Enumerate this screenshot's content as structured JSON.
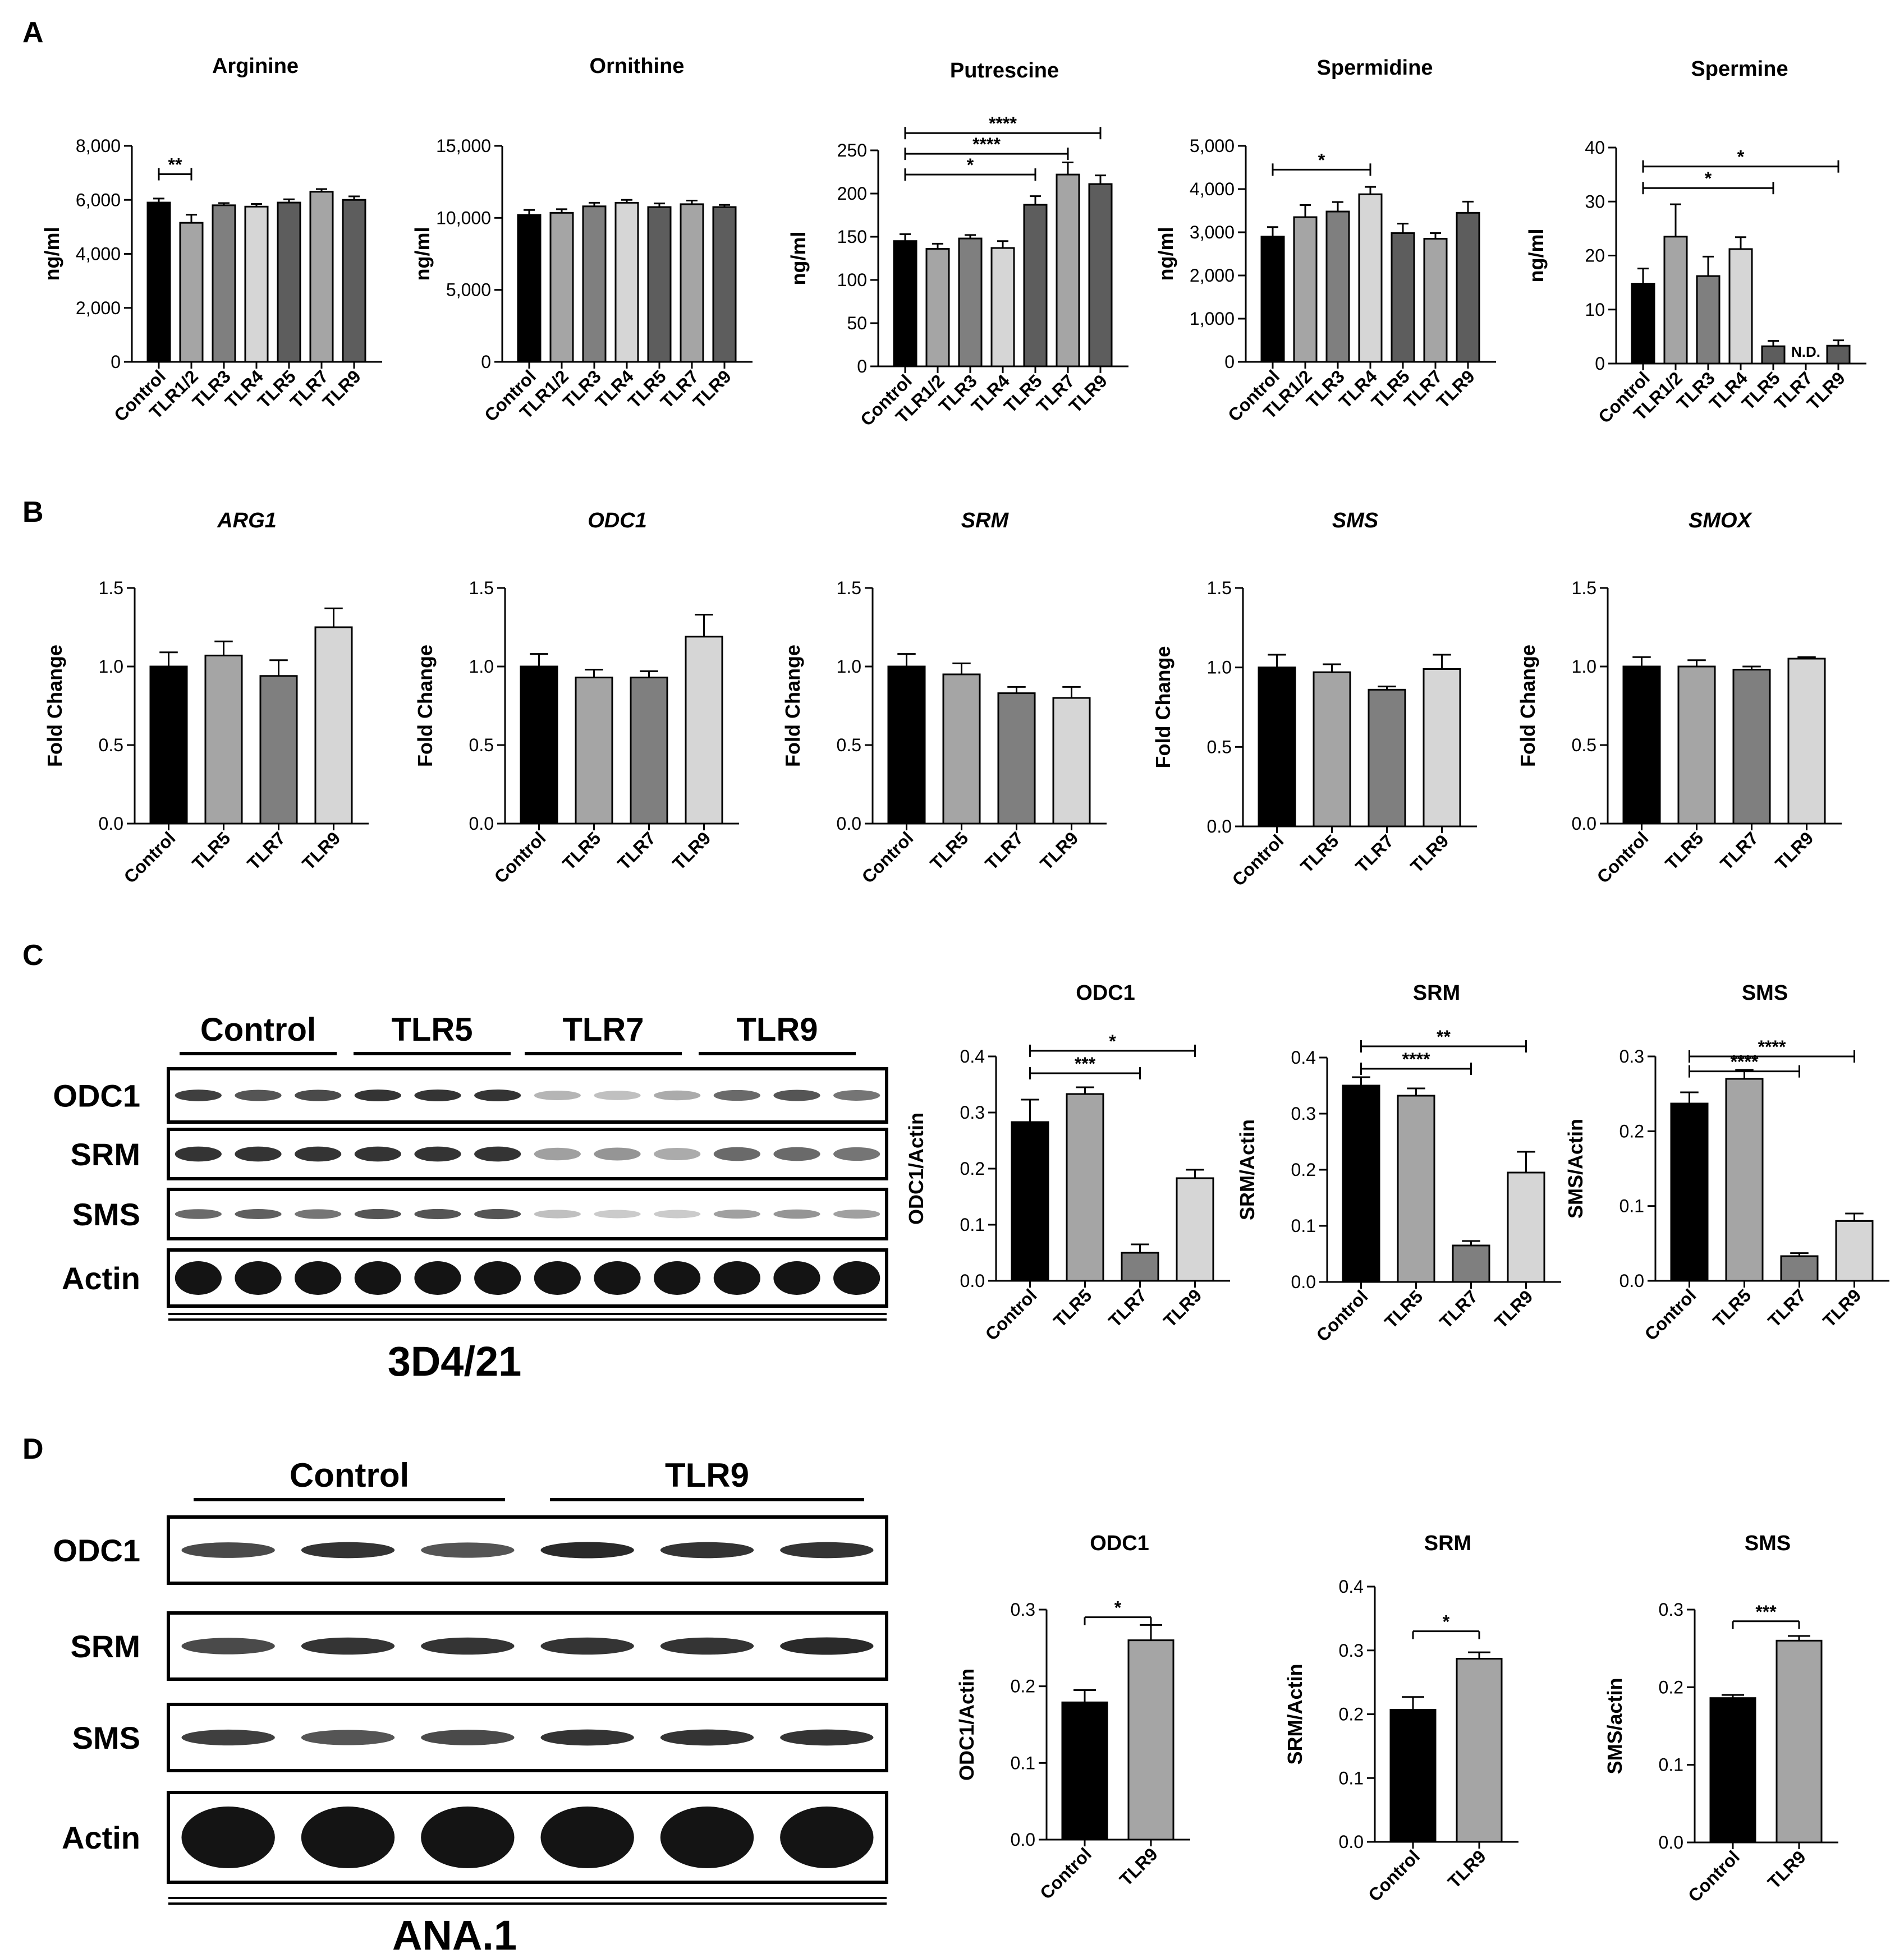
{
  "panels": {
    "A": "A",
    "B": "B",
    "C": "C",
    "D": "D"
  },
  "colors": {
    "black": "#000000",
    "dark_gray": "#5d5d5d",
    "mid_gray": "#7f7f7f",
    "light_gray": "#a5a5a5",
    "lightest_gray": "#d6d6d6"
  },
  "blots": {
    "C": {
      "groups": [
        "Control",
        "TLR5",
        "TLR7",
        "TLR9"
      ],
      "rows": [
        "ODC1",
        "SRM",
        "SMS",
        "Actin"
      ],
      "cell_line": "3D4/21",
      "band_intensity": {
        "ODC1": [
          0.8,
          0.7,
          0.75,
          0.85,
          0.85,
          0.85,
          0.25,
          0.2,
          0.3,
          0.6,
          0.7,
          0.55
        ],
        "SRM": [
          0.85,
          0.85,
          0.85,
          0.85,
          0.85,
          0.85,
          0.35,
          0.4,
          0.3,
          0.6,
          0.6,
          0.55
        ],
        "SMS": [
          0.6,
          0.65,
          0.55,
          0.7,
          0.7,
          0.7,
          0.2,
          0.15,
          0.15,
          0.35,
          0.4,
          0.35
        ],
        "Actin": [
          1,
          1,
          1,
          1,
          1,
          1,
          1,
          1,
          1,
          1,
          1,
          1
        ]
      }
    },
    "D": {
      "groups": [
        "Control",
        "TLR9"
      ],
      "rows": [
        "ODC1",
        "SRM",
        "SMS",
        "Actin"
      ],
      "cell_line": "ANA.1",
      "band_intensity": {
        "ODC1": [
          0.75,
          0.85,
          0.7,
          0.9,
          0.85,
          0.85
        ],
        "SRM": [
          0.75,
          0.85,
          0.85,
          0.85,
          0.85,
          0.9
        ],
        "SMS": [
          0.8,
          0.7,
          0.75,
          0.85,
          0.85,
          0.85
        ],
        "Actin": [
          1,
          1,
          1,
          1,
          1,
          1
        ]
      }
    }
  },
  "chart_data": [
    {
      "panel": "A",
      "type": "bar",
      "title": "Arginine",
      "title_italic": false,
      "categories": [
        "Control",
        "TLR1/2",
        "TLR3",
        "TLR4",
        "TLR5",
        "TLR7",
        "TLR9"
      ],
      "values": [
        5900,
        5150,
        5800,
        5750,
        5900,
        6300,
        6000
      ],
      "errors": [
        150,
        300,
        80,
        100,
        120,
        100,
        130
      ],
      "colors": [
        "#000000",
        "#a5a5a5",
        "#7f7f7f",
        "#d6d6d6",
        "#5d5d5d",
        "#a5a5a5",
        "#5d5d5d"
      ],
      "ylim": [
        0,
        8000
      ],
      "yticks": [
        "0",
        "2,000",
        "4,000",
        "6,000",
        "8,000"
      ],
      "ylabel": "ng/ml",
      "signif": [
        {
          "from": 0,
          "to": 1,
          "label": "**",
          "y": 6950,
          "ticks": "both"
        }
      ]
    },
    {
      "panel": "A",
      "type": "bar",
      "title": "Ornithine",
      "title_italic": false,
      "categories": [
        "Control",
        "TLR1/2",
        "TLR3",
        "TLR4",
        "TLR5",
        "TLR7",
        "TLR9"
      ],
      "values": [
        10200,
        10350,
        10800,
        11050,
        10750,
        10950,
        10750
      ],
      "errors": [
        350,
        250,
        250,
        200,
        250,
        250,
        150
      ],
      "colors": [
        "#000000",
        "#a5a5a5",
        "#7f7f7f",
        "#d6d6d6",
        "#5d5d5d",
        "#a5a5a5",
        "#5d5d5d"
      ],
      "ylim": [
        0,
        15000
      ],
      "yticks": [
        "0",
        "5,000",
        "10,000",
        "15,000"
      ],
      "ylabel": "ng/ml",
      "signif": []
    },
    {
      "panel": "A",
      "type": "bar",
      "title": "Putrescine",
      "title_italic": false,
      "categories": [
        "Control",
        "TLR1/2",
        "TLR3",
        "TLR4",
        "TLR5",
        "TLR7",
        "TLR9"
      ],
      "values": [
        145,
        136,
        148,
        137,
        187,
        222,
        211
      ],
      "errors": [
        8,
        6,
        4,
        8,
        10,
        14,
        10
      ],
      "colors": [
        "#000000",
        "#a5a5a5",
        "#7f7f7f",
        "#d6d6d6",
        "#5d5d5d",
        "#a5a5a5",
        "#5d5d5d"
      ],
      "ylim": [
        0,
        250
      ],
      "yticks": [
        "0",
        "50",
        "100",
        "150",
        "200",
        "250"
      ],
      "ylabel": "ng/ml",
      "signif": [
        {
          "from": 0,
          "to": 4,
          "label": "*",
          "y": 222,
          "ticks": "both"
        },
        {
          "from": 0,
          "to": 5,
          "label": "****",
          "y": 246,
          "ticks": "both"
        },
        {
          "from": 0,
          "to": 6,
          "label": "****",
          "y": 270,
          "ticks": "both"
        }
      ]
    },
    {
      "panel": "A",
      "type": "bar",
      "title": "Spermidine",
      "title_italic": false,
      "categories": [
        "Control",
        "TLR1/2",
        "TLR3",
        "TLR4",
        "TLR5",
        "TLR7",
        "TLR9"
      ],
      "values": [
        2900,
        3350,
        3480,
        3880,
        2980,
        2850,
        3450
      ],
      "errors": [
        220,
        280,
        220,
        170,
        220,
        130,
        260
      ],
      "colors": [
        "#000000",
        "#a5a5a5",
        "#7f7f7f",
        "#d6d6d6",
        "#5d5d5d",
        "#a5a5a5",
        "#5d5d5d"
      ],
      "ylim": [
        0,
        5000
      ],
      "yticks": [
        "0",
        "1,000",
        "2,000",
        "3,000",
        "4,000",
        "5,000"
      ],
      "ylabel": "ng/ml",
      "signif": [
        {
          "from": 0,
          "to": 3,
          "label": "*",
          "y": 4450,
          "ticks": "both"
        }
      ]
    },
    {
      "panel": "A",
      "type": "bar",
      "title": "Spermine",
      "title_italic": false,
      "categories": [
        "Control",
        "TLR1/2",
        "TLR3",
        "TLR4",
        "TLR5",
        "TLR7",
        "TLR9"
      ],
      "values": [
        14.8,
        23.5,
        16.2,
        21.2,
        3.2,
        0,
        3.3
      ],
      "errors": [
        2.8,
        6.0,
        3.6,
        2.2,
        1.0,
        0,
        1.0
      ],
      "colors": [
        "#000000",
        "#a5a5a5",
        "#7f7f7f",
        "#d6d6d6",
        "#5d5d5d",
        "#a5a5a5",
        "#5d5d5d"
      ],
      "ylim": [
        0,
        40
      ],
      "yticks": [
        "0",
        "10",
        "20",
        "30",
        "40"
      ],
      "ylabel": "ng/ml",
      "nd": {
        "index": 5,
        "label": "N.D."
      },
      "signif": [
        {
          "from": 0,
          "to": 4,
          "label": "*",
          "y": 32.5,
          "ticks": "both"
        },
        {
          "from": 0,
          "to": 6,
          "label": "*",
          "y": 36.5,
          "ticks": "both"
        }
      ]
    },
    {
      "panel": "B",
      "type": "bar",
      "title": "ARG1",
      "title_italic": true,
      "categories": [
        "Control",
        "TLR5",
        "TLR7",
        "TLR9"
      ],
      "values": [
        1.0,
        1.07,
        0.94,
        1.25
      ],
      "errors": [
        0.09,
        0.09,
        0.1,
        0.12
      ],
      "colors": [
        "#000000",
        "#a5a5a5",
        "#7f7f7f",
        "#d6d6d6"
      ],
      "ylim": [
        0,
        1.5
      ],
      "yticks": [
        "0.0",
        "0.5",
        "1.0",
        "1.5"
      ],
      "ylabel": "Fold Change",
      "signif": []
    },
    {
      "panel": "B",
      "type": "bar",
      "title": "ODC1",
      "title_italic": true,
      "categories": [
        "Control",
        "TLR5",
        "TLR7",
        "TLR9"
      ],
      "values": [
        1.0,
        0.93,
        0.93,
        1.19
      ],
      "errors": [
        0.08,
        0.05,
        0.04,
        0.14
      ],
      "colors": [
        "#000000",
        "#a5a5a5",
        "#7f7f7f",
        "#d6d6d6"
      ],
      "ylim": [
        0,
        1.5
      ],
      "yticks": [
        "0.0",
        "0.5",
        "1.0",
        "1.5"
      ],
      "ylabel": "Fold Change",
      "signif": []
    },
    {
      "panel": "B",
      "type": "bar",
      "title": "SRM",
      "title_italic": true,
      "categories": [
        "Control",
        "TLR5",
        "TLR7",
        "TLR9"
      ],
      "values": [
        1.0,
        0.95,
        0.83,
        0.8
      ],
      "errors": [
        0.08,
        0.07,
        0.04,
        0.07
      ],
      "colors": [
        "#000000",
        "#a5a5a5",
        "#7f7f7f",
        "#d6d6d6"
      ],
      "ylim": [
        0,
        1.5
      ],
      "yticks": [
        "0.0",
        "0.5",
        "1.0",
        "1.5"
      ],
      "ylabel": "Fold Change",
      "signif": []
    },
    {
      "panel": "B",
      "type": "bar",
      "title": "SMS",
      "title_italic": true,
      "categories": [
        "Control",
        "TLR5",
        "TLR7",
        "TLR9"
      ],
      "values": [
        1.0,
        0.97,
        0.86,
        0.99
      ],
      "errors": [
        0.08,
        0.05,
        0.02,
        0.09
      ],
      "colors": [
        "#000000",
        "#a5a5a5",
        "#7f7f7f",
        "#d6d6d6"
      ],
      "ylim": [
        0,
        1.5
      ],
      "yticks": [
        "0.0",
        "0.5",
        "1.0",
        "1.5"
      ],
      "ylabel": "Fold Change",
      "signif": []
    },
    {
      "panel": "B",
      "type": "bar",
      "title": "SMOX",
      "title_italic": true,
      "categories": [
        "Control",
        "TLR5",
        "TLR7",
        "TLR9"
      ],
      "values": [
        1.0,
        1.0,
        0.98,
        1.05
      ],
      "errors": [
        0.06,
        0.04,
        0.02,
        0.01
      ],
      "colors": [
        "#000000",
        "#a5a5a5",
        "#7f7f7f",
        "#d6d6d6"
      ],
      "ylim": [
        0,
        1.5
      ],
      "yticks": [
        "0.0",
        "0.5",
        "1.0",
        "1.5"
      ],
      "ylabel": "Fold Change",
      "signif": []
    },
    {
      "panel": "C",
      "type": "bar",
      "title": "ODC1",
      "title_italic": false,
      "categories": [
        "Control",
        "TLR5",
        "TLR7",
        "TLR9"
      ],
      "values": [
        0.283,
        0.333,
        0.05,
        0.183
      ],
      "errors": [
        0.04,
        0.012,
        0.015,
        0.015
      ],
      "colors": [
        "#000000",
        "#a5a5a5",
        "#7f7f7f",
        "#d6d6d6"
      ],
      "ylim": [
        0,
        0.4
      ],
      "yticks": [
        "0.0",
        "0.1",
        "0.2",
        "0.3",
        "0.4"
      ],
      "ylabel": "ODC1/Actin",
      "signif": [
        {
          "from": 0,
          "to": 2,
          "label": "***",
          "y": 0.37,
          "ticks": "both"
        },
        {
          "from": 0,
          "to": 3,
          "label": "*",
          "y": 0.41,
          "ticks": "both"
        }
      ]
    },
    {
      "panel": "C",
      "type": "bar",
      "title": "SRM",
      "title_italic": false,
      "categories": [
        "Control",
        "TLR5",
        "TLR7",
        "TLR9"
      ],
      "values": [
        0.35,
        0.332,
        0.065,
        0.195
      ],
      "errors": [
        0.015,
        0.013,
        0.008,
        0.037
      ],
      "colors": [
        "#000000",
        "#a5a5a5",
        "#7f7f7f",
        "#d6d6d6"
      ],
      "ylim": [
        0,
        0.4
      ],
      "yticks": [
        "0.0",
        "0.1",
        "0.2",
        "0.3",
        "0.4"
      ],
      "ylabel": "SRM/Actin",
      "signif": [
        {
          "from": 0,
          "to": 2,
          "label": "****",
          "y": 0.38,
          "ticks": "both"
        },
        {
          "from": 0,
          "to": 3,
          "label": "**",
          "y": 0.42,
          "ticks": "both"
        }
      ]
    },
    {
      "panel": "C",
      "type": "bar",
      "title": "SMS",
      "title_italic": false,
      "categories": [
        "Control",
        "TLR5",
        "TLR7",
        "TLR9"
      ],
      "values": [
        0.237,
        0.27,
        0.033,
        0.08
      ],
      "errors": [
        0.015,
        0.012,
        0.004,
        0.01
      ],
      "colors": [
        "#000000",
        "#a5a5a5",
        "#7f7f7f",
        "#d6d6d6"
      ],
      "ylim": [
        0,
        0.3
      ],
      "yticks": [
        "0.0",
        "0.1",
        "0.2",
        "0.3"
      ],
      "ylabel": "SMS/Actin",
      "signif": [
        {
          "from": 0,
          "to": 2,
          "label": "****",
          "y": 0.28,
          "ticks": "both"
        },
        {
          "from": 0,
          "to": 3,
          "label": "****",
          "y": 0.3,
          "ticks": "both"
        }
      ]
    },
    {
      "panel": "D",
      "type": "bar",
      "title": "ODC1",
      "title_italic": false,
      "categories": [
        "Control",
        "TLR9"
      ],
      "values": [
        0.179,
        0.26
      ],
      "errors": [
        0.016,
        0.02
      ],
      "colors": [
        "#000000",
        "#a5a5a5"
      ],
      "ylim": [
        0,
        0.3
      ],
      "yticks": [
        "0.0",
        "0.1",
        "0.2",
        "0.3"
      ],
      "ylabel": "ODC1/Actin",
      "signif": [
        {
          "from": 0,
          "to": 1,
          "label": "*",
          "y": 0.29,
          "ticks": "down"
        }
      ]
    },
    {
      "panel": "D",
      "type": "bar",
      "title": "SRM",
      "title_italic": false,
      "categories": [
        "Control",
        "TLR9"
      ],
      "values": [
        0.207,
        0.287
      ],
      "errors": [
        0.02,
        0.01
      ],
      "colors": [
        "#000000",
        "#a5a5a5"
      ],
      "ylim": [
        0,
        0.4
      ],
      "yticks": [
        "0.0",
        "0.1",
        "0.2",
        "0.3",
        "0.4"
      ],
      "ylabel": "SRM/Actin",
      "signif": [
        {
          "from": 0,
          "to": 1,
          "label": "*",
          "y": 0.33,
          "ticks": "down"
        }
      ]
    },
    {
      "panel": "D",
      "type": "bar",
      "title": "SMS",
      "title_italic": false,
      "categories": [
        "Control",
        "TLR9"
      ],
      "values": [
        0.186,
        0.26
      ],
      "errors": [
        0.004,
        0.006
      ],
      "colors": [
        "#000000",
        "#a5a5a5"
      ],
      "ylim": [
        0,
        0.3
      ],
      "yticks": [
        "0.0",
        "0.1",
        "0.2",
        "0.3"
      ],
      "ylabel": "SMS/actin",
      "signif": [
        {
          "from": 0,
          "to": 1,
          "label": "***",
          "y": 0.285,
          "ticks": "down"
        }
      ]
    }
  ]
}
